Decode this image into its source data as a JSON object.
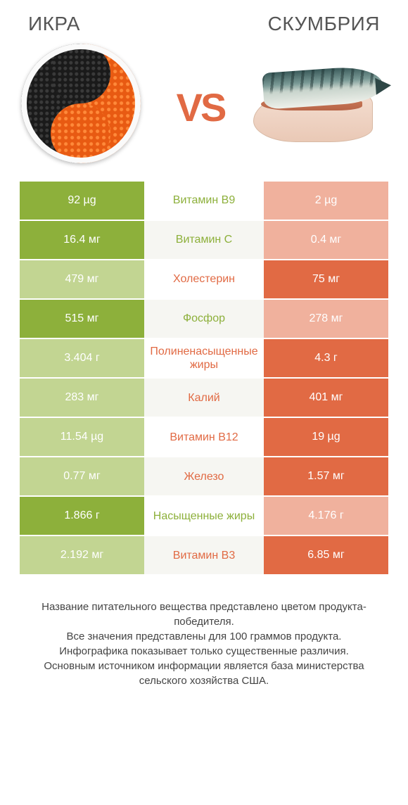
{
  "colors": {
    "left": "#8db03b",
    "right": "#e16a44",
    "left_dim": "#c2d592",
    "right_dim": "#f0b19d",
    "mid_bg_even": "#ffffff",
    "mid_bg_odd": "#f6f6f2",
    "text_dark": "#555555",
    "vs": "#e16a44"
  },
  "header": {
    "left_title": "ИКРА",
    "right_title": "СКУМБРИЯ",
    "vs_label": "VS"
  },
  "table": {
    "rows": [
      {
        "name": "Витамин B9",
        "left": "92 µg",
        "right": "2 µg",
        "winner": "left"
      },
      {
        "name": "Витамин C",
        "left": "16.4 мг",
        "right": "0.4 мг",
        "winner": "left"
      },
      {
        "name": "Холестерин",
        "left": "479 мг",
        "right": "75 мг",
        "winner": "right"
      },
      {
        "name": "Фосфор",
        "left": "515 мг",
        "right": "278 мг",
        "winner": "left"
      },
      {
        "name": "Полиненасыщенные жиры",
        "left": "3.404 г",
        "right": "4.3 г",
        "winner": "right"
      },
      {
        "name": "Калий",
        "left": "283 мг",
        "right": "401 мг",
        "winner": "right"
      },
      {
        "name": "Витамин B12",
        "left": "11.54 µg",
        "right": "19 µg",
        "winner": "right"
      },
      {
        "name": "Железо",
        "left": "0.77 мг",
        "right": "1.57 мг",
        "winner": "right"
      },
      {
        "name": "Насыщенные жиры",
        "left": "1.866 г",
        "right": "4.176 г",
        "winner": "left"
      },
      {
        "name": "Витамин B3",
        "left": "2.192 мг",
        "right": "6.85 мг",
        "winner": "right"
      }
    ]
  },
  "footer": {
    "lines": [
      "Название питательного вещества представлено цветом продукта-победителя.",
      "Все значения представлены для 100 граммов продукта.",
      "Инфографика показывает только существенные различия.",
      "Основным источником информации является база министерства сельского хозяйства США."
    ]
  }
}
